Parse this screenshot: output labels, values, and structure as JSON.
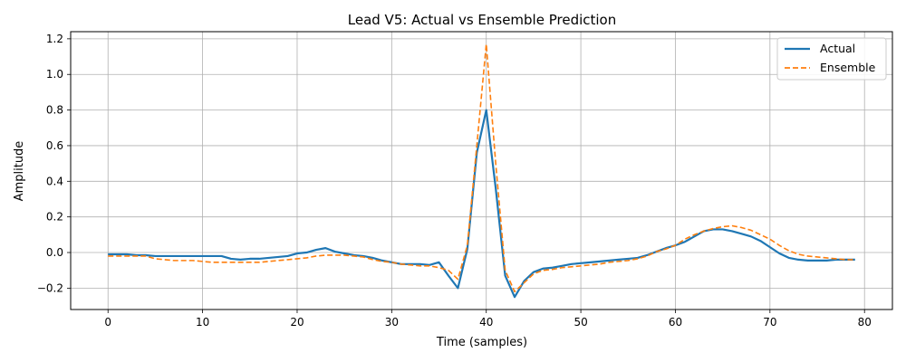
{
  "chart_data": {
    "type": "line",
    "title": "Lead V5: Actual vs Ensemble Prediction",
    "xlabel": "Time (samples)",
    "ylabel": "Amplitude",
    "xlim": [
      -3.95,
      82.95
    ],
    "ylim": [
      -0.32,
      1.24
    ],
    "xticks": [
      0,
      10,
      20,
      30,
      40,
      50,
      60,
      70,
      80
    ],
    "yticks": [
      -0.2,
      0.0,
      0.2,
      0.4,
      0.6,
      0.8,
      1.0,
      1.2
    ],
    "grid": true,
    "legend_position": "top-right",
    "x": [
      0,
      1,
      2,
      3,
      4,
      5,
      6,
      7,
      8,
      9,
      10,
      11,
      12,
      13,
      14,
      15,
      16,
      17,
      18,
      19,
      20,
      21,
      22,
      23,
      24,
      25,
      26,
      27,
      28,
      29,
      30,
      31,
      32,
      33,
      34,
      35,
      36,
      37,
      38,
      39,
      40,
      41,
      42,
      43,
      44,
      45,
      46,
      47,
      48,
      49,
      50,
      51,
      52,
      53,
      54,
      55,
      56,
      57,
      58,
      59,
      60,
      61,
      62,
      63,
      64,
      65,
      66,
      67,
      68,
      69,
      70,
      71,
      72,
      73,
      74,
      75,
      76,
      77,
      78,
      79
    ],
    "series": [
      {
        "name": "Actual",
        "color": "#1f77b4",
        "style": "solid",
        "values": [
          -0.01,
          -0.01,
          -0.01,
          -0.015,
          -0.015,
          -0.02,
          -0.02,
          -0.02,
          -0.02,
          -0.02,
          -0.02,
          -0.02,
          -0.02,
          -0.035,
          -0.04,
          -0.035,
          -0.035,
          -0.03,
          -0.025,
          -0.02,
          -0.005,
          0.0,
          0.015,
          0.025,
          0.005,
          -0.005,
          -0.015,
          -0.02,
          -0.03,
          -0.045,
          -0.055,
          -0.065,
          -0.065,
          -0.065,
          -0.07,
          -0.055,
          -0.13,
          -0.2,
          0.02,
          0.56,
          0.8,
          0.36,
          -0.13,
          -0.25,
          -0.16,
          -0.11,
          -0.09,
          -0.085,
          -0.075,
          -0.065,
          -0.06,
          -0.055,
          -0.05,
          -0.045,
          -0.04,
          -0.035,
          -0.03,
          -0.015,
          0.005,
          0.025,
          0.04,
          0.06,
          0.09,
          0.12,
          0.13,
          0.13,
          0.12,
          0.105,
          0.09,
          0.065,
          0.03,
          -0.005,
          -0.03,
          -0.04,
          -0.045,
          -0.045,
          -0.045,
          -0.04,
          -0.04,
          -0.04
        ]
      },
      {
        "name": "Ensemble",
        "color": "#ff7f0e",
        "style": "dashed",
        "values": [
          -0.02,
          -0.02,
          -0.02,
          -0.02,
          -0.02,
          -0.035,
          -0.04,
          -0.045,
          -0.045,
          -0.045,
          -0.05,
          -0.055,
          -0.055,
          -0.055,
          -0.055,
          -0.055,
          -0.055,
          -0.05,
          -0.045,
          -0.04,
          -0.035,
          -0.03,
          -0.02,
          -0.015,
          -0.015,
          -0.015,
          -0.02,
          -0.025,
          -0.04,
          -0.05,
          -0.055,
          -0.065,
          -0.07,
          -0.075,
          -0.075,
          -0.085,
          -0.1,
          -0.15,
          0.04,
          0.6,
          1.17,
          0.5,
          -0.1,
          -0.22,
          -0.17,
          -0.12,
          -0.1,
          -0.095,
          -0.085,
          -0.08,
          -0.075,
          -0.07,
          -0.065,
          -0.055,
          -0.05,
          -0.045,
          -0.035,
          -0.02,
          0.005,
          0.02,
          0.04,
          0.075,
          0.1,
          0.12,
          0.135,
          0.145,
          0.15,
          0.14,
          0.125,
          0.1,
          0.075,
          0.04,
          0.01,
          -0.01,
          -0.02,
          -0.025,
          -0.03,
          -0.035,
          -0.04,
          -0.04
        ]
      }
    ]
  }
}
